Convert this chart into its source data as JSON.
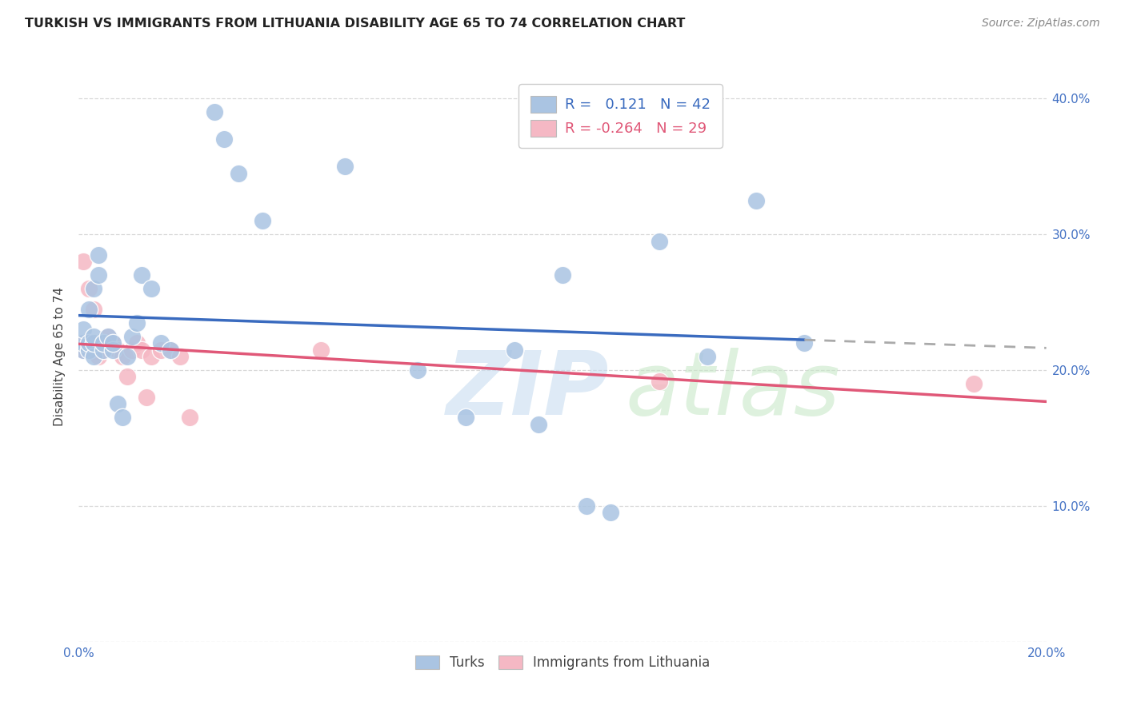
{
  "title": "TURKISH VS IMMIGRANTS FROM LITHUANIA DISABILITY AGE 65 TO 74 CORRELATION CHART",
  "source": "Source: ZipAtlas.com",
  "ylabel": "Disability Age 65 to 74",
  "xlim": [
    0.0,
    0.2
  ],
  "ylim": [
    0.0,
    0.42
  ],
  "turks_R": 0.121,
  "turks_N": 42,
  "lith_R": -0.264,
  "lith_N": 29,
  "turks_color": "#aac4e2",
  "lith_color": "#f5b8c4",
  "turks_line_color": "#3a6bbf",
  "lith_line_color": "#e05878",
  "turks_x": [
    0.001,
    0.001,
    0.001,
    0.002,
    0.002,
    0.002,
    0.003,
    0.003,
    0.003,
    0.003,
    0.004,
    0.004,
    0.005,
    0.005,
    0.006,
    0.007,
    0.007,
    0.008,
    0.009,
    0.01,
    0.011,
    0.012,
    0.013,
    0.015,
    0.017,
    0.019,
    0.028,
    0.03,
    0.033,
    0.038,
    0.055,
    0.07,
    0.08,
    0.09,
    0.095,
    0.1,
    0.105,
    0.11,
    0.12,
    0.13,
    0.14,
    0.15
  ],
  "turks_y": [
    0.215,
    0.22,
    0.23,
    0.215,
    0.22,
    0.245,
    0.21,
    0.22,
    0.225,
    0.26,
    0.27,
    0.285,
    0.215,
    0.22,
    0.225,
    0.215,
    0.22,
    0.175,
    0.165,
    0.21,
    0.225,
    0.235,
    0.27,
    0.26,
    0.22,
    0.215,
    0.39,
    0.37,
    0.345,
    0.31,
    0.35,
    0.2,
    0.165,
    0.215,
    0.16,
    0.27,
    0.1,
    0.095,
    0.295,
    0.21,
    0.325,
    0.22
  ],
  "lith_x": [
    0.001,
    0.001,
    0.001,
    0.002,
    0.002,
    0.002,
    0.003,
    0.003,
    0.003,
    0.004,
    0.004,
    0.005,
    0.006,
    0.007,
    0.008,
    0.009,
    0.01,
    0.011,
    0.012,
    0.013,
    0.014,
    0.015,
    0.017,
    0.019,
    0.021,
    0.023,
    0.05,
    0.12,
    0.185
  ],
  "lith_y": [
    0.215,
    0.22,
    0.28,
    0.215,
    0.22,
    0.26,
    0.215,
    0.22,
    0.245,
    0.215,
    0.21,
    0.215,
    0.225,
    0.22,
    0.215,
    0.21,
    0.195,
    0.215,
    0.22,
    0.215,
    0.18,
    0.21,
    0.215,
    0.215,
    0.21,
    0.165,
    0.215,
    0.192,
    0.19
  ],
  "legend_color_turks": "#aac4e2",
  "legend_color_lith": "#f5b8c4",
  "watermark_zip_color": "#c8ddf0",
  "watermark_atlas_color": "#c8e8c8",
  "background_color": "#ffffff",
  "grid_color": "#d8d8d8",
  "title_color": "#222222",
  "source_color": "#888888",
  "ylabel_color": "#444444",
  "tick_color": "#4472c4"
}
